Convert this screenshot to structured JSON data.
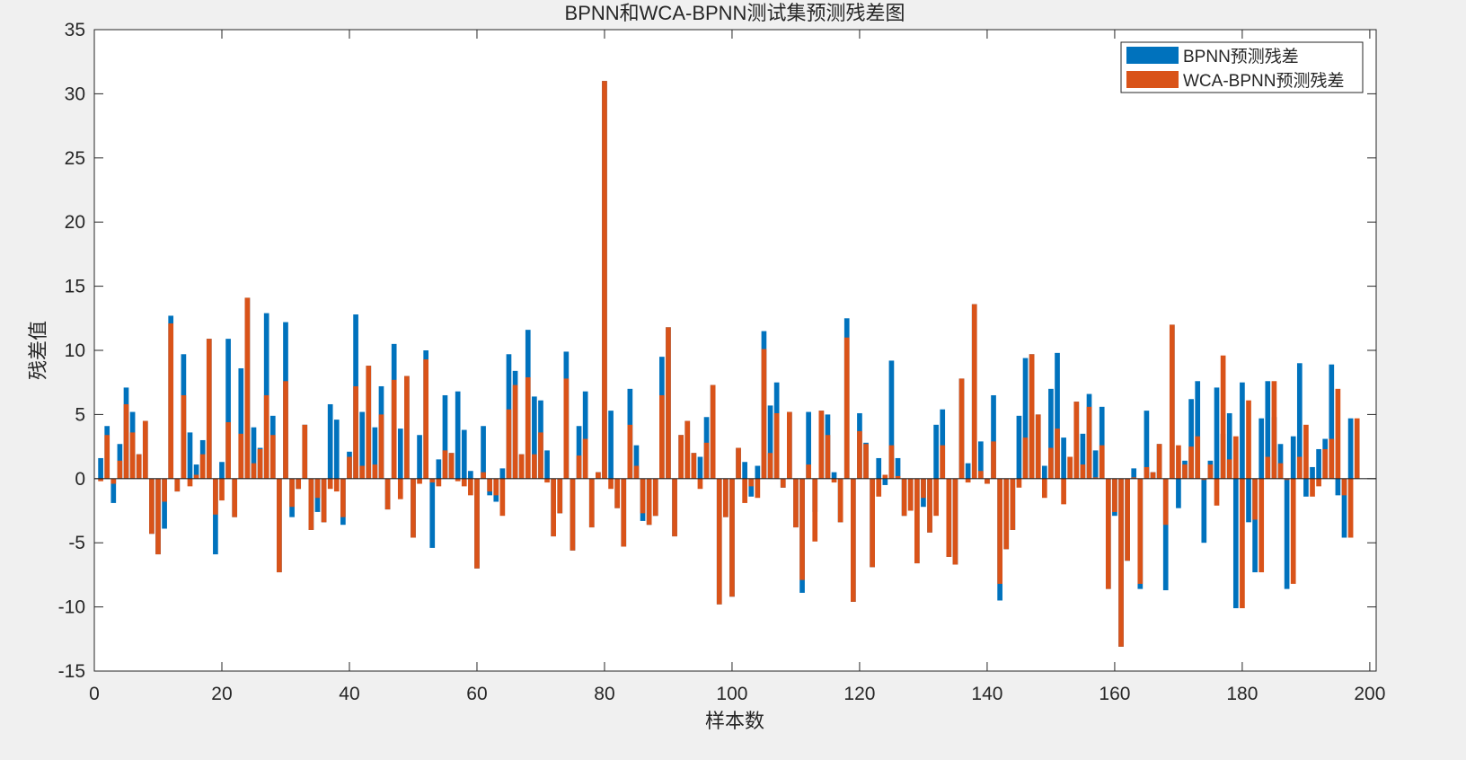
{
  "chart_data": {
    "type": "bar",
    "title": "BPNN和WCA-BPNN测试集预测残差图",
    "xlabel": "样本数",
    "ylabel": "残差值",
    "xlim": [
      0,
      201
    ],
    "ylim": [
      -15,
      35
    ],
    "xticks": [
      0,
      20,
      40,
      60,
      80,
      100,
      120,
      140,
      160,
      180,
      200
    ],
    "yticks": [
      -15,
      -10,
      -5,
      0,
      5,
      10,
      15,
      20,
      25,
      30,
      35
    ],
    "grid": false,
    "legend_position": "top-right",
    "series": [
      {
        "name": "BPNN预测残差",
        "color": "#0072BD",
        "values": [
          1.6,
          4.1,
          -1.9,
          2.7,
          7.1,
          5.2,
          1.9,
          4.5,
          -4.3,
          -5.9,
          -3.9,
          12.7,
          -1.0,
          9.7,
          3.6,
          1.1,
          3.0,
          10.9,
          -5.9,
          1.3,
          10.9,
          -3.0,
          8.6,
          14.1,
          4.0,
          2.4,
          12.9,
          4.9,
          -7.3,
          12.2,
          -3.0,
          -0.8,
          4.2,
          -4.0,
          -2.6,
          -3.4,
          5.8,
          4.6,
          -3.6,
          2.1,
          12.8,
          5.2,
          8.8,
          4.0,
          7.2,
          -2.4,
          10.5,
          3.9,
          8.0,
          -4.6,
          3.4,
          10.0,
          -5.4,
          1.5,
          6.5,
          2.0,
          6.8,
          3.8,
          0.6,
          -7.0,
          4.1,
          -1.3,
          -1.8,
          0.8,
          9.7,
          8.4,
          1.9,
          11.6,
          6.4,
          6.1,
          2.2,
          -4.5,
          -2.7,
          9.9,
          -5.6,
          4.1,
          6.8,
          -3.8,
          0.5,
          31.0,
          5.3,
          -2.3,
          -5.3,
          7.0,
          2.6,
          -3.3,
          -3.6,
          -2.9,
          9.5,
          11.8,
          -4.5,
          3.4,
          4.5,
          2.0,
          1.7,
          4.8,
          7.3,
          -9.8,
          -3.0,
          -9.2,
          2.4,
          1.3,
          -1.4,
          1.0,
          11.5,
          5.7,
          7.5,
          -0.7,
          5.2,
          -3.8,
          -8.9,
          5.2,
          -2.6,
          5.3,
          5.0,
          0.5,
          -3.4,
          12.5,
          -9.6,
          5.1,
          2.8,
          -6.9,
          1.6,
          -0.5,
          9.2,
          1.6,
          -2.9,
          -2.5,
          -6.6,
          -2.2,
          -4.2,
          4.2,
          5.4,
          -6.1,
          -6.7,
          7.8,
          1.2,
          13.6,
          2.9,
          -0.4,
          6.5,
          -9.5,
          -5.5,
          -4.0,
          4.9,
          9.4,
          9.7,
          5.0,
          1.0,
          7.0,
          9.8,
          3.2,
          1.7,
          6.0,
          3.5,
          6.6,
          2.2,
          5.6,
          -8.6,
          -2.9,
          -13.1,
          -6.4,
          0.8,
          -8.6,
          5.3,
          0.5,
          2.7,
          -8.7,
          12.0,
          -2.3,
          1.4,
          6.2,
          7.6,
          -5.0,
          1.4,
          7.1,
          3.5,
          5.1,
          -10.1,
          7.5,
          -3.4,
          -7.3,
          4.7,
          7.6,
          4.8,
          2.7,
          -8.6,
          3.3,
          9.0,
          -1.4,
          0.9,
          2.3,
          3.1,
          8.9,
          -1.3,
          -4.6,
          4.7
        ]
      },
      {
        "name": "WCA-BPNN预测残差",
        "color": "#D95319",
        "values": [
          -0.2,
          3.4,
          -0.4,
          1.4,
          5.8,
          3.6,
          1.9,
          4.5,
          -4.3,
          -5.9,
          -1.8,
          12.1,
          -1.0,
          6.5,
          -0.6,
          0.3,
          1.9,
          10.9,
          -2.8,
          -1.7,
          4.4,
          -3.0,
          3.5,
          14.1,
          1.2,
          2.3,
          6.5,
          3.4,
          -7.3,
          7.6,
          -2.2,
          -0.8,
          4.2,
          -4.0,
          -1.5,
          -3.4,
          -0.8,
          -1.0,
          -3.0,
          1.7,
          7.2,
          1.0,
          8.8,
          1.1,
          5.0,
          -2.4,
          7.7,
          -1.6,
          8.0,
          -4.6,
          -0.4,
          9.3,
          -0.3,
          -0.6,
          2.2,
          2.0,
          -0.2,
          -0.6,
          -1.3,
          -7.0,
          0.5,
          -1.0,
          -1.3,
          -2.9,
          5.4,
          7.3,
          1.9,
          7.9,
          1.9,
          3.6,
          -0.3,
          -4.5,
          -2.7,
          7.8,
          -5.6,
          1.8,
          3.1,
          -3.8,
          0.5,
          31.0,
          -0.8,
          -2.3,
          -5.3,
          4.2,
          1.0,
          -2.7,
          -3.6,
          -2.9,
          6.5,
          11.8,
          -4.5,
          3.4,
          4.5,
          2.0,
          -0.8,
          2.8,
          7.3,
          -9.8,
          -3.0,
          -9.2,
          2.4,
          -1.9,
          -0.6,
          -1.5,
          10.1,
          2.0,
          5.1,
          -0.7,
          5.2,
          -3.8,
          -7.9,
          1.1,
          -4.9,
          5.3,
          3.4,
          -0.3,
          -3.4,
          11.0,
          -9.6,
          3.7,
          2.7,
          -6.9,
          -1.4,
          0.3,
          2.6,
          0.2,
          -2.9,
          -2.5,
          -6.6,
          -1.5,
          -4.2,
          -2.9,
          2.6,
          -6.1,
          -6.7,
          7.8,
          -0.3,
          13.6,
          0.6,
          -0.4,
          2.9,
          -8.2,
          -5.5,
          -4.0,
          -0.7,
          3.2,
          9.7,
          5.0,
          -1.5,
          2.4,
          3.9,
          -2.0,
          1.7,
          6.0,
          1.1,
          5.6,
          0.1,
          2.6,
          -8.6,
          -2.6,
          -13.1,
          -6.4,
          0.1,
          -8.2,
          0.9,
          0.5,
          2.7,
          -3.6,
          12.0,
          2.6,
          1.1,
          2.5,
          3.3,
          -0.1,
          1.1,
          -2.1,
          9.6,
          1.5,
          3.3,
          -10.1,
          6.1,
          -3.2,
          -7.3,
          1.7,
          7.6,
          1.2,
          -0.1,
          -8.2,
          1.7,
          4.2,
          -1.4,
          -0.6,
          2.3,
          3.1,
          7.0,
          -1.3,
          -4.6,
          4.7
        ]
      }
    ]
  }
}
